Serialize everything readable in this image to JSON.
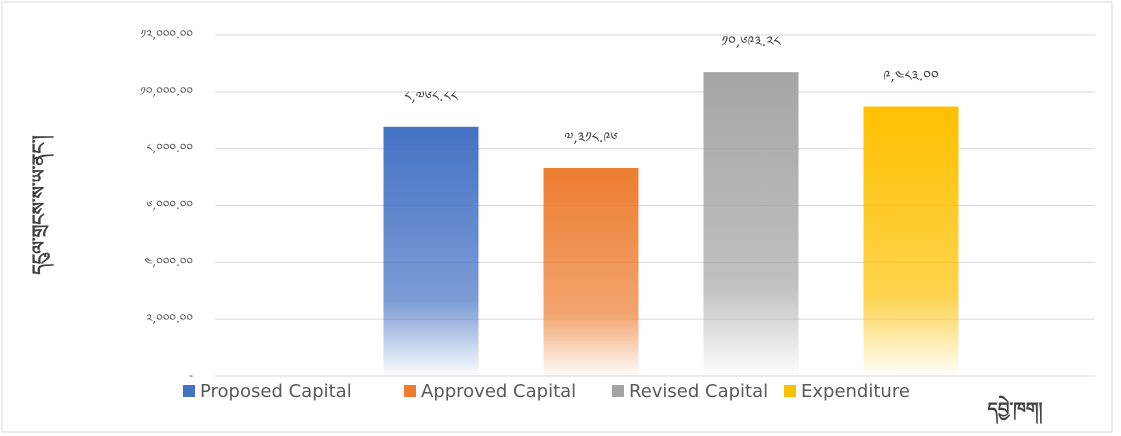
{
  "chart_data": {
    "type": "bar",
    "ylabel": "དངུལ་གྲངས་ས་ཡ་ནང་།",
    "xlabel": "དབྱེ་ཁག།",
    "ylim": [
      0,
      12000
    ],
    "yticks": [
      {
        "value": 0,
        "label": "-"
      },
      {
        "value": 2000,
        "label": "༢,༠༠༠.༠༠"
      },
      {
        "value": 4000,
        "label": "༤,༠༠༠.༠༠"
      },
      {
        "value": 6000,
        "label": "༦,༠༠༠.༠༠"
      },
      {
        "value": 8000,
        "label": "༨,༠༠༠.༠༠"
      },
      {
        "value": 10000,
        "label": "༡༠,༠༠༠.༠༠"
      },
      {
        "value": 12000,
        "label": "༡༢,༠༠༠.༠༠"
      }
    ],
    "grid": true,
    "legend": "bottom",
    "series": [
      {
        "name": "Proposed Capital",
        "color": "#4472c4",
        "values": [
          8768.88
        ],
        "value_labels": [
          "༨,༧༦༨.༨༨"
        ]
      },
      {
        "name": "Approved Capital",
        "color": "#ed7d31",
        "values": [
          7318.96
        ],
        "value_labels": [
          "༧,༣༡༨.༩༦"
        ]
      },
      {
        "name": "Revised Capital",
        "color": "#a5a5a5",
        "values": [
          10693.28
        ],
        "value_labels": [
          "༡༠,༦༩༣.༢༨"
        ]
      },
      {
        "name": "Expenditure",
        "color": "#ffc000",
        "values": [
          9483
        ],
        "value_labels": [
          "༩,༤༨༣.༠༠"
        ]
      }
    ]
  }
}
